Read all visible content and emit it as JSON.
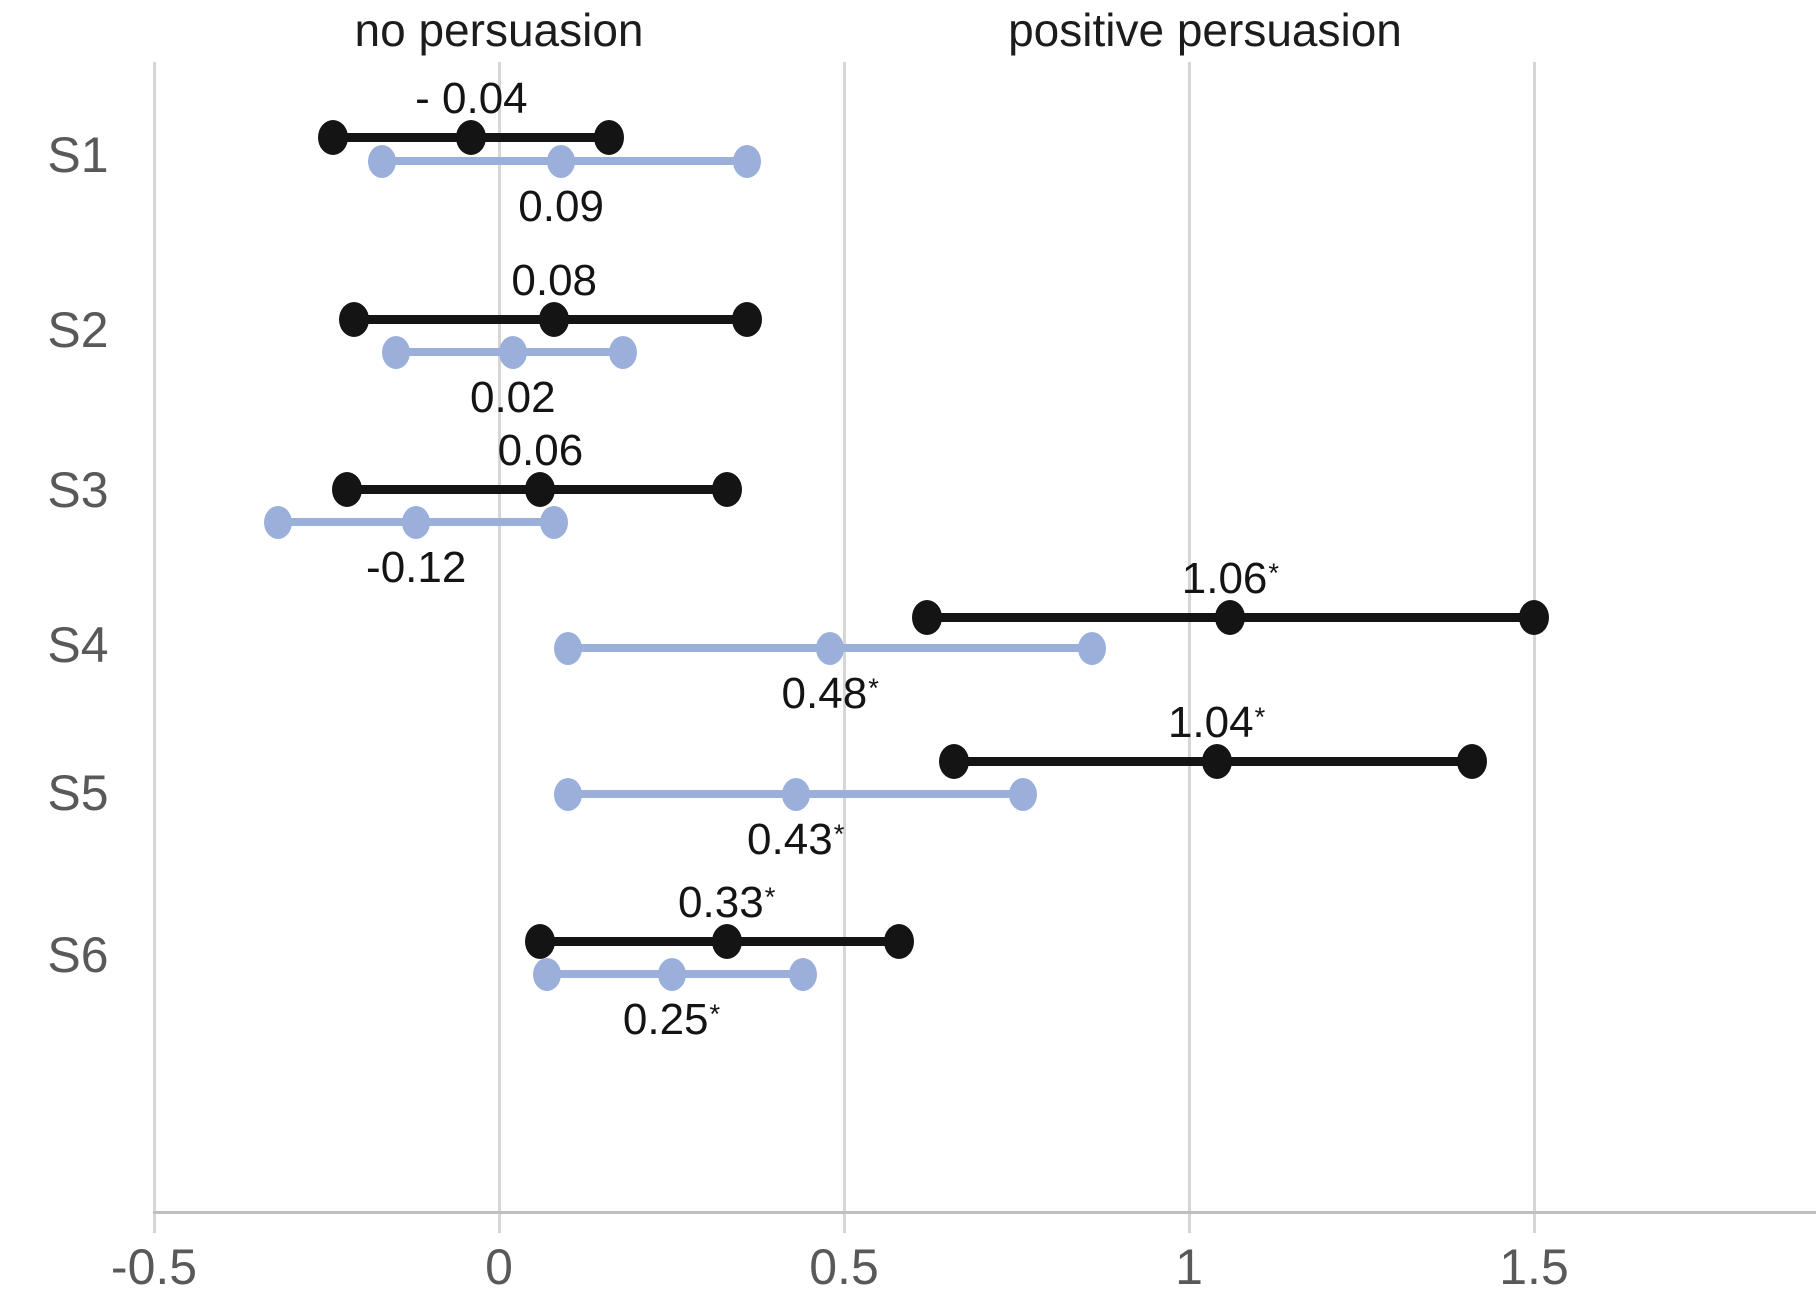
{
  "headers": {
    "left": {
      "text": "no persuasion"
    },
    "right": {
      "text": "positive persuasion"
    }
  },
  "chart_data": {
    "type": "scatter",
    "subtype": "horizontal-interval-dot-plot",
    "title": "",
    "xlabel": "",
    "ylabel": "",
    "column_headers": [
      "no persuasion",
      "positive persuasion"
    ],
    "categories": [
      "S1",
      "S2",
      "S3",
      "S4",
      "S5",
      "S6"
    ],
    "x_axis": {
      "ticks": [
        {
          "value": -0.5,
          "label": "-0.5"
        },
        {
          "value": 0,
          "label": "0"
        },
        {
          "value": 0.5,
          "label": "0.5"
        },
        {
          "value": 1,
          "label": "1"
        },
        {
          "value": 1.5,
          "label": "1.5"
        }
      ],
      "range_shown": [
        -0.5,
        1.9
      ],
      "grid": true
    },
    "significance_marker": "*",
    "series": [
      {
        "name": "black-series",
        "color": "#141414",
        "points": [
          {
            "category": "S1",
            "mean": -0.04,
            "ci_low": -0.24,
            "ci_high": 0.16,
            "label": "- 0.04",
            "significant": false
          },
          {
            "category": "S2",
            "mean": 0.08,
            "ci_low": -0.21,
            "ci_high": 0.36,
            "label": "0.08",
            "significant": false
          },
          {
            "category": "S3",
            "mean": 0.06,
            "ci_low": -0.22,
            "ci_high": 0.33,
            "label": "0.06",
            "significant": false
          },
          {
            "category": "S4",
            "mean": 1.06,
            "ci_low": 0.62,
            "ci_high": 1.5,
            "label": "1.06",
            "significant": true
          },
          {
            "category": "S5",
            "mean": 1.04,
            "ci_low": 0.66,
            "ci_high": 1.41,
            "label": "1.04",
            "significant": true
          },
          {
            "category": "S6",
            "mean": 0.33,
            "ci_low": 0.06,
            "ci_high": 0.58,
            "label": "0.33",
            "significant": true
          }
        ]
      },
      {
        "name": "blue-series",
        "color": "#9BAFDB",
        "points": [
          {
            "category": "S1",
            "mean": 0.09,
            "ci_low": -0.17,
            "ci_high": 0.36,
            "label": "0.09",
            "significant": false
          },
          {
            "category": "S2",
            "mean": 0.02,
            "ci_low": -0.15,
            "ci_high": 0.18,
            "label": "0.02",
            "significant": false
          },
          {
            "category": "S3",
            "mean": -0.12,
            "ci_low": -0.32,
            "ci_high": 0.08,
            "label": "-0.12",
            "significant": false
          },
          {
            "category": "S4",
            "mean": 0.48,
            "ci_low": 0.1,
            "ci_high": 0.86,
            "label": "0.48",
            "significant": true
          },
          {
            "category": "S5",
            "mean": 0.43,
            "ci_low": 0.1,
            "ci_high": 0.76,
            "label": "0.43",
            "significant": true
          },
          {
            "category": "S6",
            "mean": 0.25,
            "ci_low": 0.07,
            "ci_high": 0.44,
            "label": "0.25",
            "significant": true
          }
        ]
      }
    ],
    "colors": {
      "grid": "#d6d6d6",
      "axis_line": "#bfbfbf",
      "tick_text": "#595959",
      "category_text": "#595959",
      "header_text": "#1c1c1c",
      "value_text": "#141414"
    },
    "legend": "none"
  }
}
